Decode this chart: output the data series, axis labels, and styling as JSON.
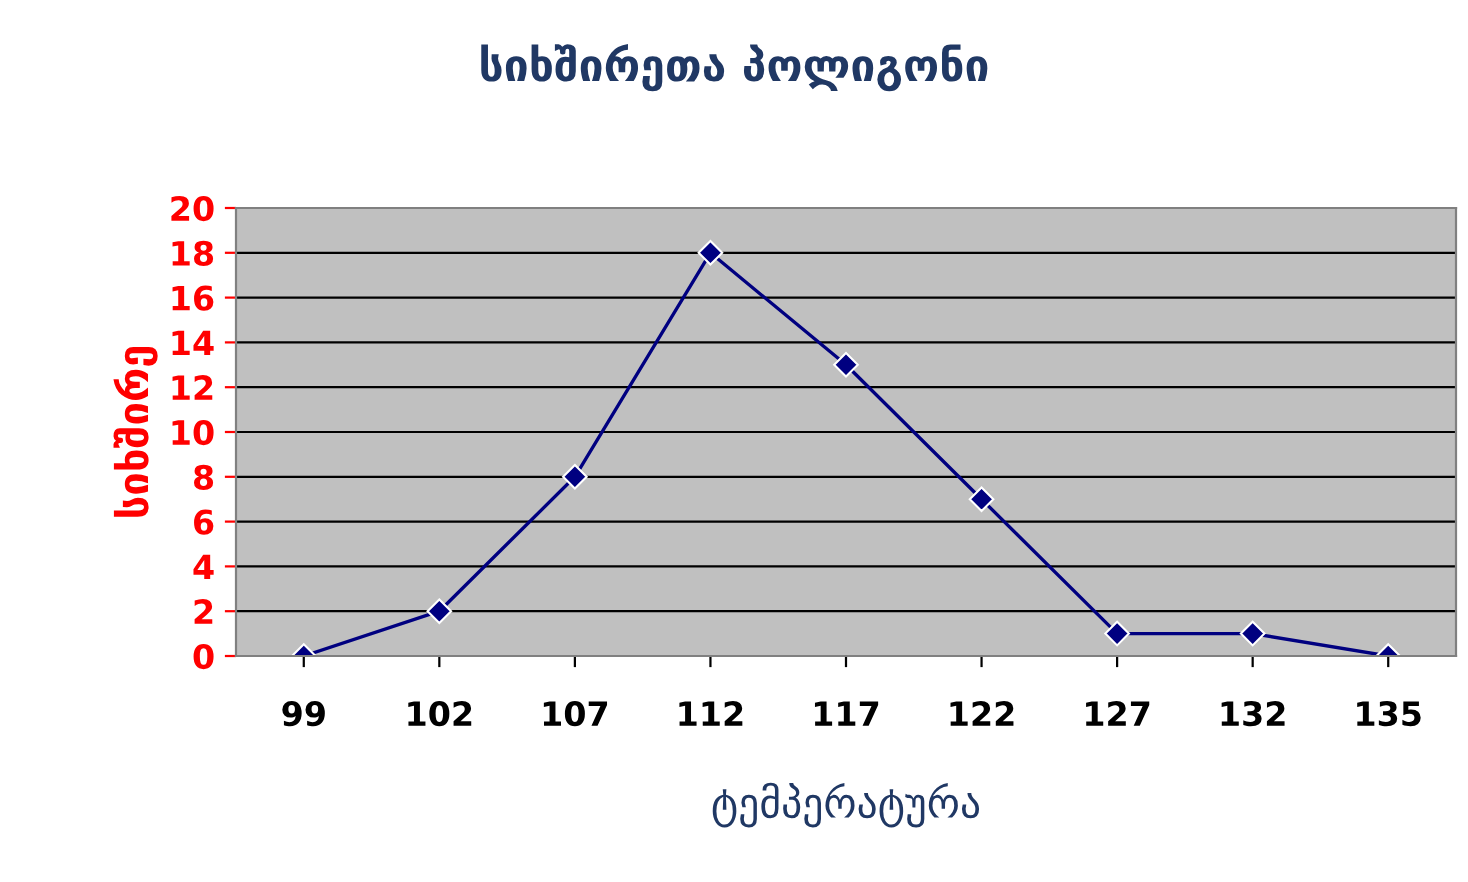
{
  "chart_data": {
    "type": "line",
    "title": "სიხშირეთა პოლიგონი",
    "xlabel": "ტემპერატურა",
    "ylabel": "სიხშირე",
    "categories": [
      "99",
      "102",
      "107",
      "112",
      "117",
      "122",
      "127",
      "132",
      "135"
    ],
    "series": [
      {
        "color": "#000080",
        "values": [
          0,
          2,
          8,
          18,
          13,
          7,
          1,
          1,
          0
        ]
      }
    ],
    "ylim": [
      0,
      20
    ],
    "yticks": [
      0,
      2,
      4,
      6,
      8,
      10,
      12,
      14,
      16,
      18,
      20
    ],
    "grid": "y",
    "legend": false,
    "marker": "diamond",
    "line_style": "solid"
  }
}
